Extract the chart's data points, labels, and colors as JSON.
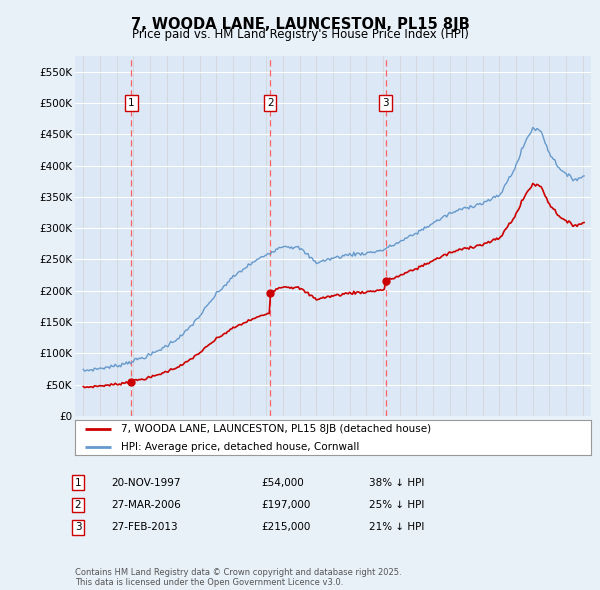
{
  "title": "7, WOODA LANE, LAUNCESTON, PL15 8JB",
  "subtitle": "Price paid vs. HM Land Registry's House Price Index (HPI)",
  "background_color": "#e8f0f8",
  "plot_bg_color": "#dce8f5",
  "transactions": [
    {
      "num": 1,
      "date": "20-NOV-1997",
      "price": 54000,
      "year": 1997.89,
      "hpi_pct": "38% ↓ HPI"
    },
    {
      "num": 2,
      "date": "27-MAR-2006",
      "price": 197000,
      "year": 2006.23,
      "hpi_pct": "25% ↓ HPI"
    },
    {
      "num": 3,
      "date": "27-FEB-2013",
      "price": 215000,
      "year": 2013.16,
      "hpi_pct": "21% ↓ HPI"
    }
  ],
  "legend_house_label": "7, WOODA LANE, LAUNCESTON, PL15 8JB (detached house)",
  "legend_hpi_label": "HPI: Average price, detached house, Cornwall",
  "footer_text": "Contains HM Land Registry data © Crown copyright and database right 2025.\nThis data is licensed under the Open Government Licence v3.0.",
  "ylim": [
    0,
    575000
  ],
  "yticks": [
    0,
    50000,
    100000,
    150000,
    200000,
    250000,
    300000,
    350000,
    400000,
    450000,
    500000,
    550000
  ],
  "ytick_labels": [
    "£0",
    "£50K",
    "£100K",
    "£150K",
    "£200K",
    "£250K",
    "£300K",
    "£350K",
    "£400K",
    "£450K",
    "£500K",
    "£550K"
  ],
  "xlim_start": 1994.5,
  "xlim_end": 2025.5,
  "house_line_color": "#cc0000",
  "hpi_line_color": "#6699cc",
  "marker_color": "#cc0000",
  "dashed_line_color": "#ff5555",
  "number_box_color": "#cc0000",
  "hpi_keypoints_x": [
    1995,
    1996,
    1997,
    1998,
    1999,
    2000,
    2001,
    2002,
    2003,
    2004,
    2005,
    2006,
    2007,
    2008,
    2009,
    2010,
    2011,
    2012,
    2013,
    2014,
    2015,
    2016,
    2017,
    2018,
    2019,
    2020,
    2021,
    2021.5,
    2022,
    2022.5,
    2023,
    2023.5,
    2024,
    2024.5,
    2025
  ],
  "hpi_keypoints_y": [
    72000,
    76000,
    80000,
    88000,
    97000,
    112000,
    130000,
    160000,
    195000,
    222000,
    242000,
    258000,
    272000,
    268000,
    245000,
    252000,
    258000,
    260000,
    265000,
    278000,
    292000,
    308000,
    323000,
    333000,
    340000,
    352000,
    400000,
    435000,
    460000,
    455000,
    420000,
    400000,
    385000,
    378000,
    382000
  ]
}
